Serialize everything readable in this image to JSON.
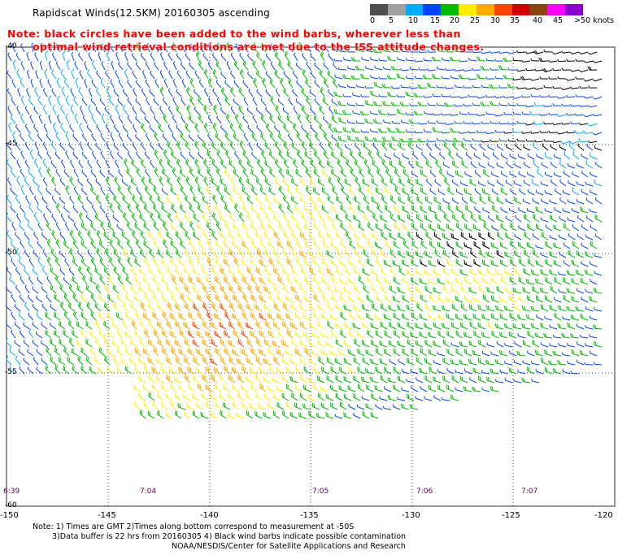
{
  "header": {
    "title": "Rapidscat Winds(12.5KM) 20160305 ascending",
    "note_line1": "Note: black circles have been added to the wind barbs, wherever less than",
    "note_line2": "optimal wind retrieval conditions are met due to the ISS attitude changes."
  },
  "legend": {
    "labels": [
      "0",
      "5",
      "10",
      "15",
      "20",
      "25",
      "30",
      "35",
      "40",
      "45",
      ">50 knots"
    ],
    "colors": [
      "#505050",
      "#a0a0a0",
      "#00aaff",
      "#0044ff",
      "#00bb00",
      "#ffee00",
      "#ffaa00",
      "#ff4400",
      "#cc0000",
      "#884411",
      "#ff00ff",
      "#8800cc"
    ]
  },
  "axes": {
    "lat_labels": [
      "-40",
      "-45",
      "-50",
      "-55",
      "-60"
    ],
    "lon_labels": [
      "-150",
      "-145",
      "-140",
      "-135",
      "-130",
      "-125",
      "-120"
    ],
    "time_labels": [
      "6:39",
      "7:04",
      "7:05",
      "7:06",
      "7:07"
    ]
  },
  "footer": {
    "line1": "Note: 1) Times are GMT 2)Times along bottom correspond to measurement at -50S",
    "line2": "3)Data buffer is 22 hrs from 20160305 4) Black wind barbs indicate possible contamination",
    "line3": "NOAA/NESDIS/Center for Satellite Applications and Research"
  },
  "map_data": {
    "lon_range": [
      -150,
      -120
    ],
    "lat_range": [
      -60,
      -40
    ],
    "gridlines": "dotted"
  }
}
